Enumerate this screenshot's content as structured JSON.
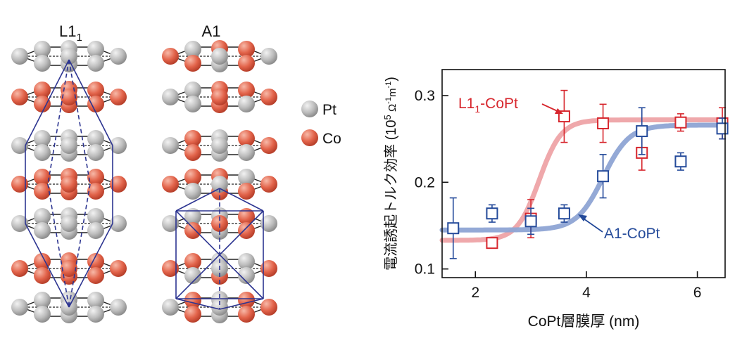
{
  "structures": {
    "left_label_main": "L1",
    "left_label_sub": "1",
    "right_label": "A1",
    "legend": [
      {
        "label": "Pt",
        "color": "#b9b9b9"
      },
      {
        "label": "Co",
        "color": "#e2634a"
      }
    ]
  },
  "chart_data": {
    "type": "scatter",
    "xlabel": "CoPt層膜厚 (nm)",
    "ylabel_main": "電流誘起トルク効率 (10",
    "ylabel_exp1": "5",
    "ylabel_mid": " Ω",
    "ylabel_exp2": "-1",
    "ylabel_m": "m",
    "ylabel_exp3": "-1",
    "ylabel_end": ")",
    "xlim": [
      1.4,
      6.5
    ],
    "ylim": [
      0.09,
      0.33
    ],
    "xticks": [
      2,
      4,
      6
    ],
    "yticks": [
      0.1,
      0.2,
      0.3
    ],
    "series": [
      {
        "name_main": "L1",
        "name_sub": "1",
        "name_end": "-CoPt",
        "color": "#d7262d",
        "fit_color": "#eea3a6",
        "points": [
          {
            "x": 2.3,
            "y": 0.13,
            "err": 0
          },
          {
            "x": 3.0,
            "y": 0.158,
            "err": 0.022
          },
          {
            "x": 3.6,
            "y": 0.276,
            "err": 0.03
          },
          {
            "x": 4.3,
            "y": 0.268,
            "err": 0.022
          },
          {
            "x": 5.0,
            "y": 0.234,
            "err": 0.02
          },
          {
            "x": 5.7,
            "y": 0.269,
            "err": 0.01
          },
          {
            "x": 6.45,
            "y": 0.268,
            "err": 0.018
          }
        ],
        "fit": {
          "low": 0.133,
          "high": 0.272,
          "x0": 3.15,
          "k": 5.0
        }
      },
      {
        "name_main": "A1-CoPt",
        "color": "#244a9a",
        "fit_color": "#8ea4d4",
        "points": [
          {
            "x": 1.6,
            "y": 0.147,
            "err": 0.035
          },
          {
            "x": 2.3,
            "y": 0.164,
            "err": 0.01
          },
          {
            "x": 3.0,
            "y": 0.155,
            "err": 0.015
          },
          {
            "x": 3.6,
            "y": 0.164,
            "err": 0.01
          },
          {
            "x": 4.3,
            "y": 0.207,
            "err": 0.025
          },
          {
            "x": 5.0,
            "y": 0.259,
            "err": 0.027
          },
          {
            "x": 5.7,
            "y": 0.224,
            "err": 0.01
          },
          {
            "x": 6.45,
            "y": 0.262,
            "err": 0.012
          }
        ],
        "fit": {
          "low": 0.145,
          "high": 0.266,
          "x0": 4.3,
          "k": 4.2
        }
      }
    ]
  }
}
